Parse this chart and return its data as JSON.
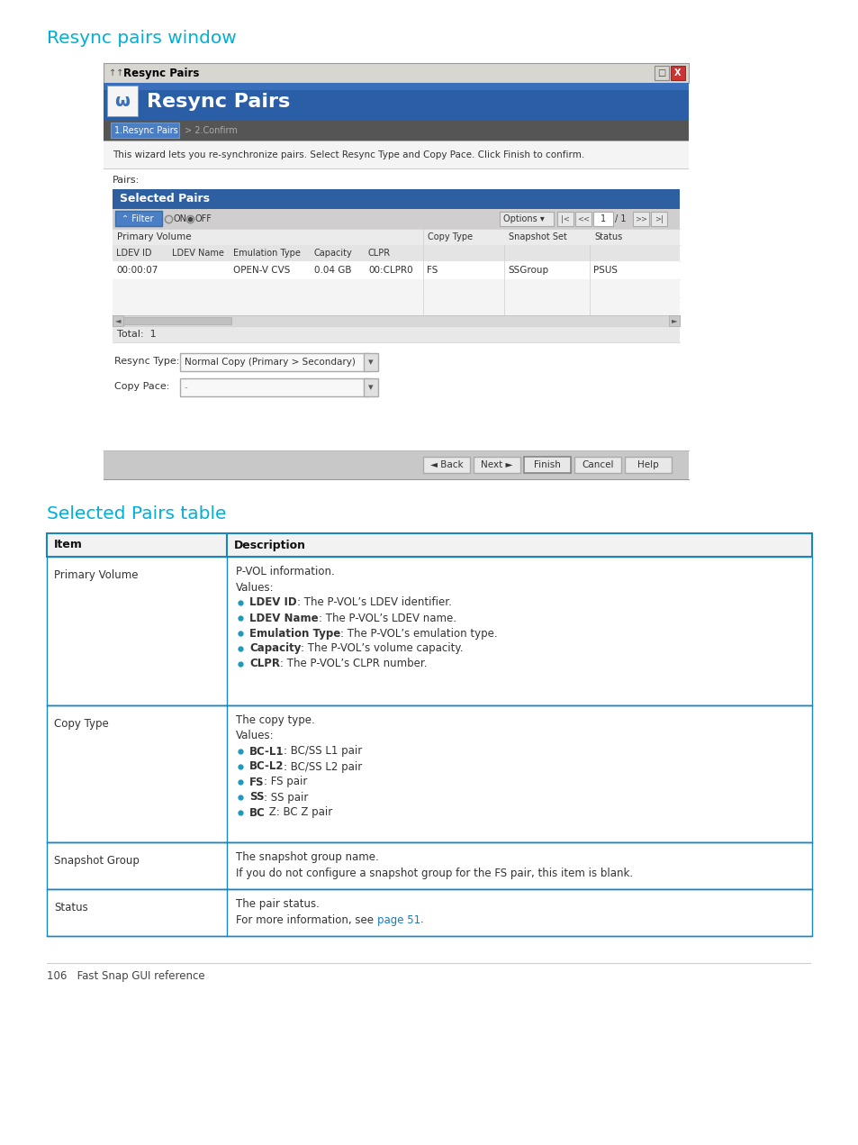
{
  "page_bg": "#ffffff",
  "heading1_text": "Resync pairs window",
  "heading1_color": "#00b0d8",
  "heading2_text": "Selected Pairs table",
  "heading2_color": "#00b0d8",
  "footer_text": "106   Fast Snap GUI reference",
  "footer_color": "#444444",
  "window_title": "Resync Pairs",
  "wizard_desc": "This wizard lets you re-synchronize pairs. Select Resync Type and Copy Pace. Click Finish to confirm.",
  "pairs_label": "Pairs:",
  "selected_pairs_header_text": "Selected Pairs",
  "table_row_data": [
    "00:00:07",
    "",
    "OPEN-V CVS",
    "0.04 GB",
    "00:CLPR0",
    "FS",
    "SSGroup",
    "PSUS"
  ],
  "col_headers_primary": [
    "LDEV ID",
    "LDEV Name",
    "Emulation Type",
    "Capacity",
    "CLPR"
  ],
  "col_headers_right": [
    "Copy Type",
    "Snapshot Set",
    "Status"
  ],
  "total_text": "Total:  1",
  "resync_type_label": "Resync Type:",
  "resync_type_value": "Normal Copy (Primary > Secondary)",
  "copy_pace_label": "Copy Pace:",
  "buttons": [
    "◄ Back",
    "Next ►",
    "Finish",
    "Cancel",
    "Help"
  ],
  "table_border_color": "#1a85bf",
  "description_table": {
    "col1_header": "Item",
    "col2_header": "Description",
    "rows": [
      {
        "item": "Primary Volume",
        "lines": [
          {
            "type": "normal",
            "text": "P-VOL information."
          },
          {
            "type": "normal",
            "text": "Values:"
          },
          {
            "type": "bullet_bold",
            "bold": "LDEV ID",
            "rest": ": The P-VOL’s LDEV identifier."
          },
          {
            "type": "bullet_bold",
            "bold": "LDEV Name",
            "rest": ": The P-VOL’s LDEV name."
          },
          {
            "type": "bullet_bold",
            "bold": "Emulation Type",
            "rest": ": The P-VOL’s emulation type."
          },
          {
            "type": "bullet_bold",
            "bold": "Capacity",
            "rest": ": The P-VOL’s volume capacity."
          },
          {
            "type": "bullet_bold",
            "bold": "CLPR",
            "rest": ": The P-VOL’s CLPR number."
          }
        ]
      },
      {
        "item": "Copy Type",
        "lines": [
          {
            "type": "normal",
            "text": "The copy type."
          },
          {
            "type": "normal",
            "text": "Values:"
          },
          {
            "type": "bullet_bold",
            "bold": "BC-L1",
            "rest": ": BC/SS L1 pair"
          },
          {
            "type": "bullet_bold",
            "bold": "BC-L2",
            "rest": ": BC/SS L2 pair"
          },
          {
            "type": "bullet_bold",
            "bold": "FS",
            "rest": ": FS pair"
          },
          {
            "type": "bullet_bold",
            "bold": "SS",
            "rest": ": SS pair"
          },
          {
            "type": "bullet_bold",
            "bold": "BC",
            "rest": " Z: BC Z pair"
          }
        ]
      },
      {
        "item": "Snapshot Group",
        "lines": [
          {
            "type": "normal",
            "text": "The snapshot group name."
          },
          {
            "type": "normal",
            "text": "If you do not configure a snapshot group for the FS pair, this item is blank."
          }
        ]
      },
      {
        "item": "Status",
        "lines": [
          {
            "type": "normal",
            "text": "The pair status."
          },
          {
            "type": "link_line",
            "pre": "For more information, see ",
            "link": "page 51",
            "post": "."
          }
        ]
      }
    ]
  }
}
